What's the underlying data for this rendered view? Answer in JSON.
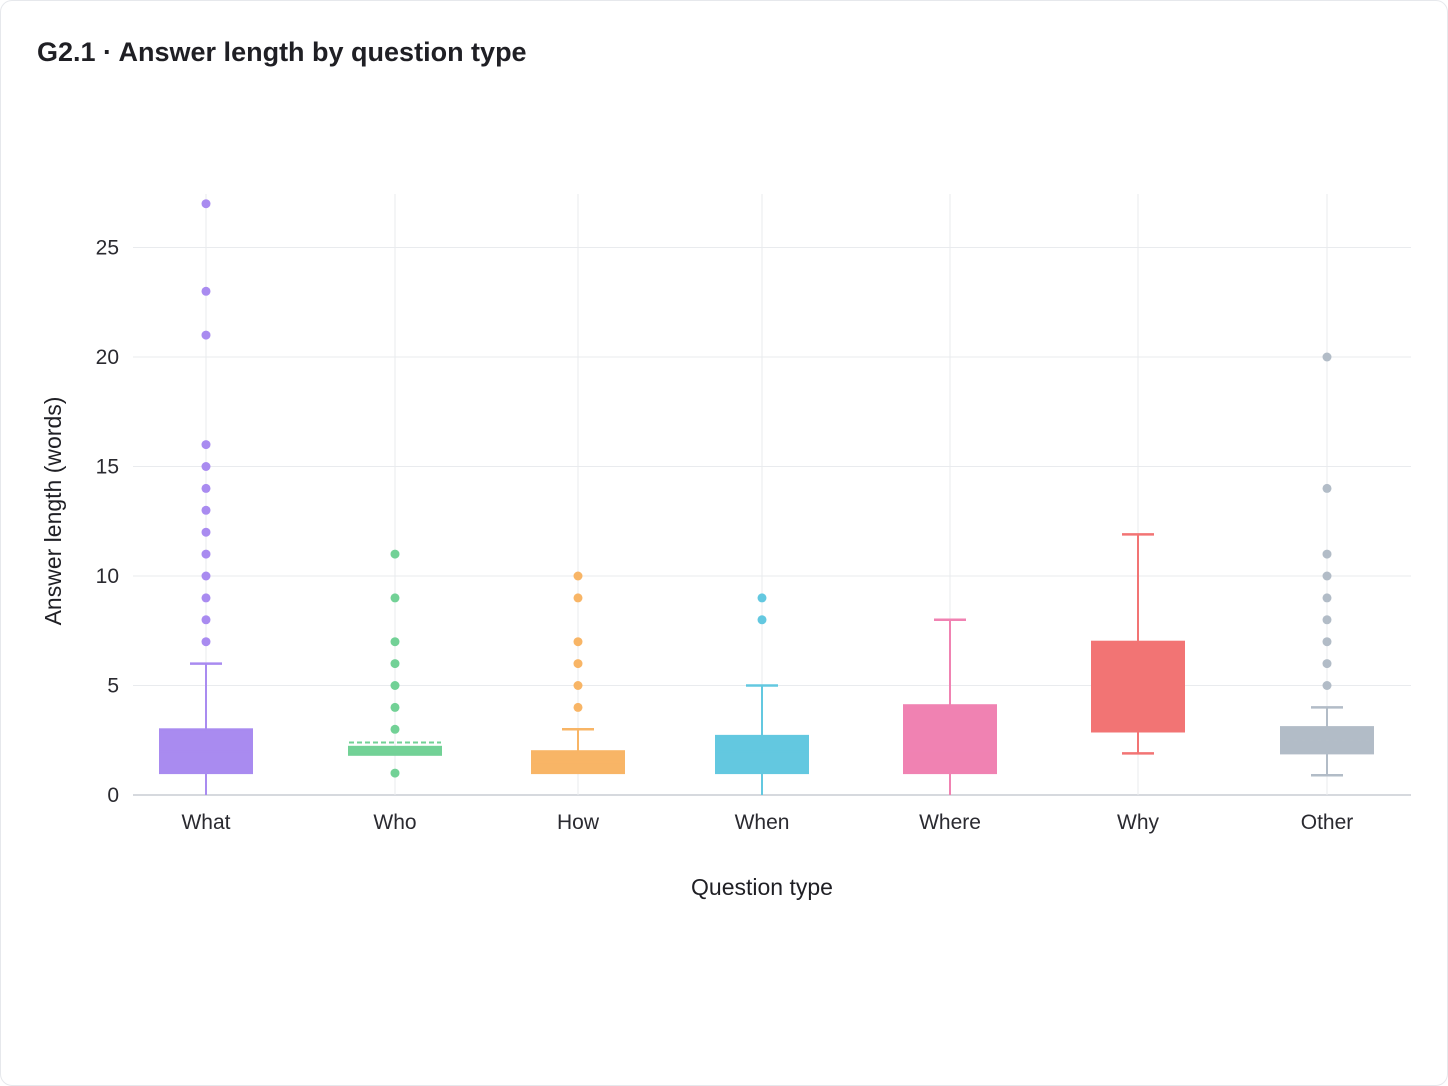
{
  "title": "G2.1 · Answer length by question type",
  "chart_data": {
    "type": "box",
    "title": "G2.1 · Answer length by question type",
    "xlabel": "Question type",
    "ylabel": "Answer length (words)",
    "categories": [
      "What",
      "Who",
      "How",
      "When",
      "Where",
      "Why",
      "Other"
    ],
    "ylim": [
      0,
      27
    ],
    "yticks": [
      0,
      5,
      10,
      15,
      20,
      25
    ],
    "grid": true,
    "boxes": [
      {
        "category": "What",
        "color": "#a98bf0",
        "whisker_low": 0,
        "q1": 1,
        "median": 2,
        "q3": 3,
        "whisker_high": 6,
        "mean": null,
        "outliers": [
          7,
          8,
          9,
          10,
          11,
          12,
          13,
          14,
          15,
          16,
          21,
          23,
          27
        ]
      },
      {
        "category": "Who",
        "color": "#72d196",
        "whisker_low": 2,
        "q1": 2,
        "median": 2,
        "q3": 2.2,
        "whisker_high": 2.2,
        "mean": 2.4,
        "outliers": [
          1,
          3,
          4,
          5,
          6,
          7,
          9,
          11
        ]
      },
      {
        "category": "How",
        "color": "#f8b566",
        "whisker_low": 1,
        "q1": 1,
        "median": 1.5,
        "q3": 2,
        "whisker_high": 3,
        "mean": null,
        "outliers": [
          4,
          5,
          6,
          7,
          9,
          10
        ]
      },
      {
        "category": "When",
        "color": "#63c8e0",
        "whisker_low": 0,
        "q1": 1,
        "median": 2,
        "q3": 2.7,
        "whisker_high": 5,
        "mean": null,
        "outliers": [
          8,
          9
        ]
      },
      {
        "category": "Where",
        "color": "#f082b2",
        "whisker_low": 0,
        "q1": 1,
        "median": 2,
        "q3": 4.1,
        "whisker_high": 8,
        "mean": null,
        "outliers": []
      },
      {
        "category": "Why",
        "color": "#f27474",
        "whisker_low": 1.9,
        "q1": 2.9,
        "median": 4,
        "q3": 7,
        "whisker_high": 11.9,
        "mean": null,
        "outliers": []
      },
      {
        "category": "Other",
        "color": "#b2bcc7",
        "whisker_low": 0.9,
        "q1": 1.9,
        "median": 2.5,
        "q3": 3.1,
        "whisker_high": 4,
        "mean": 2.5,
        "outliers": [
          5,
          6,
          7,
          8,
          9,
          10,
          11,
          14,
          20
        ]
      }
    ]
  }
}
